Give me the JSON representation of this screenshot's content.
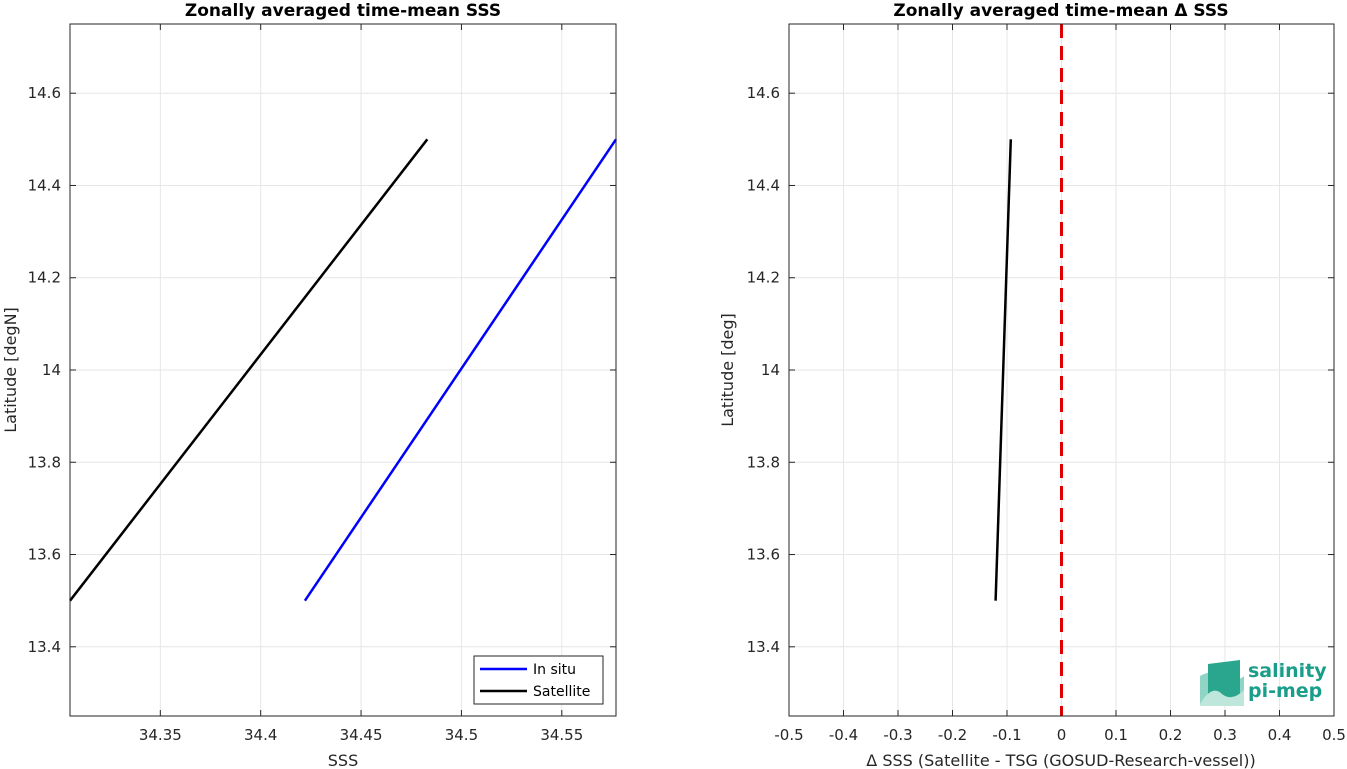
{
  "chart_data": [
    {
      "type": "line",
      "title": "Zonally averaged time-mean SSS",
      "xlabel": "SSS",
      "ylabel": "Latitude [degN]",
      "xlim": [
        34.305,
        34.577
      ],
      "ylim": [
        13.25,
        14.75
      ],
      "xticks": [
        34.35,
        34.4,
        34.45,
        34.5,
        34.55
      ],
      "xtick_labels": [
        "34.35",
        "34.4",
        "34.45",
        "34.5",
        "34.55"
      ],
      "yticks": [
        13.4,
        13.6,
        13.8,
        14.0,
        14.2,
        14.4,
        14.6
      ],
      "ytick_labels": [
        "13.4",
        "13.6",
        "13.8",
        "14",
        "14.2",
        "14.4",
        "14.6"
      ],
      "grid": true,
      "legend_position": "bottom-right",
      "series": [
        {
          "name": "In situ",
          "color": "#0000ff",
          "x": [
            34.422,
            34.577
          ],
          "y": [
            13.5,
            14.5
          ]
        },
        {
          "name": "Satellite",
          "color": "#000000",
          "x": [
            34.305,
            34.483
          ],
          "y": [
            13.5,
            14.5
          ]
        }
      ]
    },
    {
      "type": "line",
      "title": "Zonally averaged time-mean Δ SSS",
      "xlabel": "Δ SSS (Satellite - TSG (GOSUD-Research-vessel))",
      "ylabel": "Latitude [deg]",
      "xlim": [
        -0.5,
        0.5
      ],
      "ylim": [
        13.25,
        14.75
      ],
      "xticks": [
        -0.5,
        -0.4,
        -0.3,
        -0.2,
        -0.1,
        0,
        0.1,
        0.2,
        0.3,
        0.4,
        0.5
      ],
      "xtick_labels": [
        "-0.5",
        "-0.4",
        "-0.3",
        "-0.2",
        "-0.1",
        "0",
        "0.1",
        "0.2",
        "0.3",
        "0.4",
        "0.5"
      ],
      "yticks": [
        13.4,
        13.6,
        13.8,
        14.0,
        14.2,
        14.4,
        14.6
      ],
      "ytick_labels": [
        "13.4",
        "13.6",
        "13.8",
        "14",
        "14.2",
        "14.4",
        "14.6"
      ],
      "grid": true,
      "series": [
        {
          "color": "#000000",
          "x": [
            -0.121,
            -0.093
          ],
          "y": [
            13.5,
            14.5
          ]
        }
      ],
      "reference_line": {
        "x": 0,
        "color": "#e00000",
        "style": "dashed"
      }
    }
  ],
  "logo": {
    "line1": "salinity",
    "line2": "pi-mep"
  }
}
